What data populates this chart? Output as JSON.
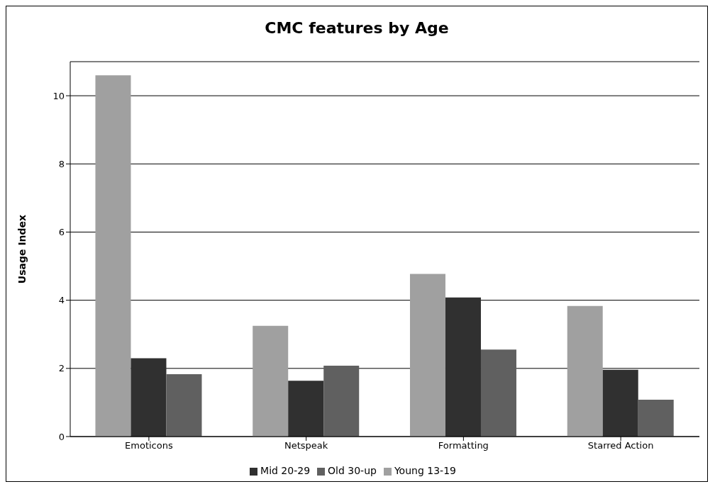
{
  "chart_data": {
    "type": "bar",
    "title": "CMC features by Age",
    "ylabel": "Usage Index",
    "categories": [
      "Emoticons",
      "Netspeak",
      "Formatting",
      "Starred Action"
    ],
    "series": [
      {
        "name": "Young 13-19",
        "color": "#a0a0a0",
        "values": [
          10.6,
          3.25,
          4.77,
          3.83
        ]
      },
      {
        "name": "Mid 20-29",
        "color": "#303030",
        "values": [
          2.3,
          1.64,
          4.08,
          1.96
        ]
      },
      {
        "name": "Old 30-up",
        "color": "#606060",
        "values": [
          1.83,
          2.08,
          2.55,
          1.08
        ]
      }
    ],
    "ylim": [
      0,
      11
    ],
    "yticks": [
      0,
      2,
      4,
      6,
      8,
      10
    ],
    "grid": "y",
    "legend": "bottom"
  }
}
